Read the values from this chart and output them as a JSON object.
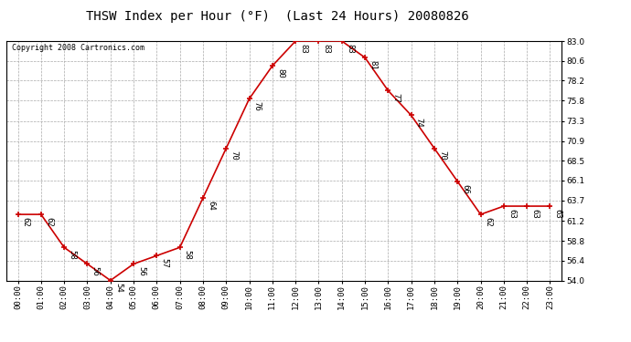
{
  "title": "THSW Index per Hour (°F)  (Last 24 Hours) 20080826",
  "copyright": "Copyright 2008 Cartronics.com",
  "hours": [
    "00:00",
    "01:00",
    "02:00",
    "03:00",
    "04:00",
    "05:00",
    "06:00",
    "07:00",
    "08:00",
    "09:00",
    "10:00",
    "11:00",
    "12:00",
    "13:00",
    "14:00",
    "15:00",
    "16:00",
    "17:00",
    "18:00",
    "19:00",
    "20:00",
    "21:00",
    "22:00",
    "23:00"
  ],
  "values": [
    62,
    62,
    58,
    56,
    54,
    56,
    57,
    58,
    64,
    70,
    76,
    80,
    83,
    83,
    83,
    81,
    77,
    74,
    70,
    66,
    62,
    63,
    63,
    63
  ],
  "ylim": [
    54.0,
    83.0
  ],
  "yticks": [
    54.0,
    56.4,
    58.8,
    61.2,
    63.7,
    66.1,
    68.5,
    70.9,
    73.3,
    75.8,
    78.2,
    80.6,
    83.0
  ],
  "line_color": "#cc0000",
  "marker_color": "#cc0000",
  "bg_color": "#ffffff",
  "plot_bg_color": "#ffffff",
  "grid_color": "#aaaaaa",
  "title_fontsize": 10,
  "label_fontsize": 6.5,
  "tick_fontsize": 6.5,
  "copyright_fontsize": 6
}
